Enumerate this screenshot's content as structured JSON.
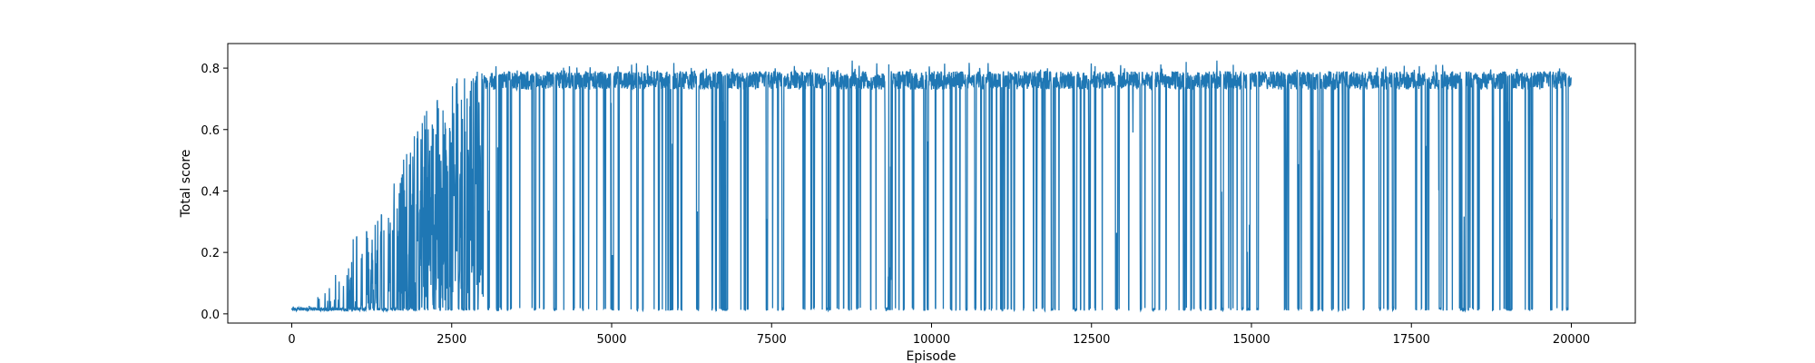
{
  "chart_data": {
    "type": "line",
    "title": "",
    "xlabel": "Episode",
    "ylabel": "Total score",
    "xlim": [
      -1000,
      21000
    ],
    "ylim": [
      -0.03,
      0.88
    ],
    "xticks": [
      0,
      2500,
      5000,
      7500,
      10000,
      12500,
      15000,
      17500,
      20000
    ],
    "xtick_labels": [
      "0",
      "2500",
      "5000",
      "7500",
      "10000",
      "12500",
      "15000",
      "17500",
      "20000"
    ],
    "yticks": [
      0.0,
      0.2,
      0.4,
      0.6,
      0.8
    ],
    "ytick_labels": [
      "0.0",
      "0.2",
      "0.4",
      "0.6",
      "0.8"
    ],
    "grid": false,
    "legend": "none",
    "line_color": "#1f77b4",
    "episode_count": 20000,
    "series": [
      {
        "x": [
          0,
          250,
          500,
          750,
          1000,
          1250,
          1500,
          1750,
          2000,
          2250,
          2500,
          2750,
          3000,
          3250,
          3500,
          3750,
          4000,
          5000,
          7500,
          10000,
          12500,
          15000,
          17500,
          20000
        ],
        "y_min": [
          0.01,
          0.01,
          0.01,
          0.01,
          0.01,
          0.01,
          0.01,
          0.01,
          0.01,
          0.01,
          0.01,
          0.01,
          0.01,
          0.01,
          0.01,
          0.01,
          0.01,
          0.01,
          0.01,
          0.01,
          0.01,
          0.01,
          0.01,
          0.01
        ],
        "y_max": [
          0.02,
          0.03,
          0.08,
          0.15,
          0.28,
          0.3,
          0.37,
          0.52,
          0.62,
          0.73,
          0.76,
          0.79,
          0.8,
          0.82,
          0.82,
          0.82,
          0.82,
          0.82,
          0.83,
          0.83,
          0.83,
          0.83,
          0.82,
          0.83
        ],
        "y_typical_high": [
          0.02,
          0.02,
          0.04,
          0.06,
          0.1,
          0.14,
          0.2,
          0.3,
          0.45,
          0.6,
          0.7,
          0.76,
          0.78,
          0.79,
          0.79,
          0.79,
          0.79,
          0.79,
          0.79,
          0.79,
          0.79,
          0.79,
          0.79,
          0.79
        ]
      }
    ]
  }
}
